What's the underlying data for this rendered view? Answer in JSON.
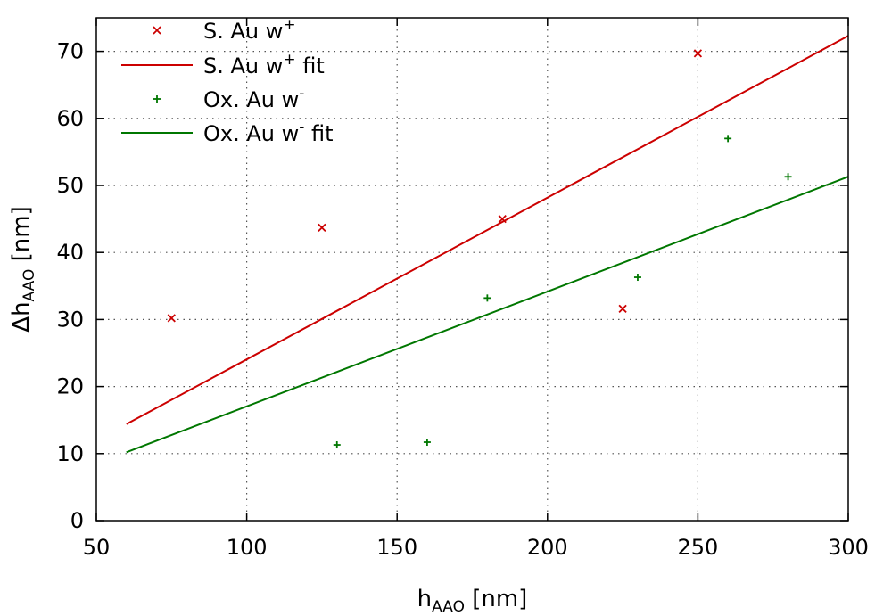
{
  "chart_data": {
    "type": "scatter",
    "xlabel": {
      "base": "h",
      "sub": "AAO",
      "unit": " [nm]"
    },
    "ylabel": {
      "pre": "Δh",
      "sub": "AAO",
      "unit": " [nm]"
    },
    "xlim": [
      50,
      300
    ],
    "ylim": [
      0,
      75
    ],
    "x_ticks": [
      50,
      100,
      150,
      200,
      250,
      300
    ],
    "y_ticks": [
      0,
      10,
      20,
      30,
      40,
      50,
      60,
      70
    ],
    "grid": true,
    "legend_position": "top-left",
    "series": [
      {
        "name": {
          "base": "S. Au w",
          "sup": "+",
          "after": ""
        },
        "kind": "points",
        "marker": "x",
        "color": "#cc0000",
        "x": [
          75,
          125,
          185,
          225,
          250
        ],
        "y": [
          30.2,
          43.7,
          45.0,
          31.6,
          69.7
        ]
      },
      {
        "name": {
          "base": "S. Au w",
          "sup": "+",
          "after": " fit"
        },
        "kind": "line",
        "color": "#cc0000",
        "x": [
          60,
          300
        ],
        "y": [
          14.4,
          72.3
        ]
      },
      {
        "name": {
          "base": "Ox. Au w",
          "sup": "-",
          "after": ""
        },
        "kind": "points",
        "marker": "+",
        "color": "#007700",
        "x": [
          130,
          160,
          180,
          230,
          260,
          280
        ],
        "y": [
          11.3,
          11.7,
          33.2,
          36.3,
          57.0,
          51.3
        ]
      },
      {
        "name": {
          "base": "Ox. Au w",
          "sup": "-",
          "after": " fit"
        },
        "kind": "line",
        "color": "#007700",
        "x": [
          60,
          300
        ],
        "y": [
          10.2,
          51.3
        ]
      }
    ]
  }
}
